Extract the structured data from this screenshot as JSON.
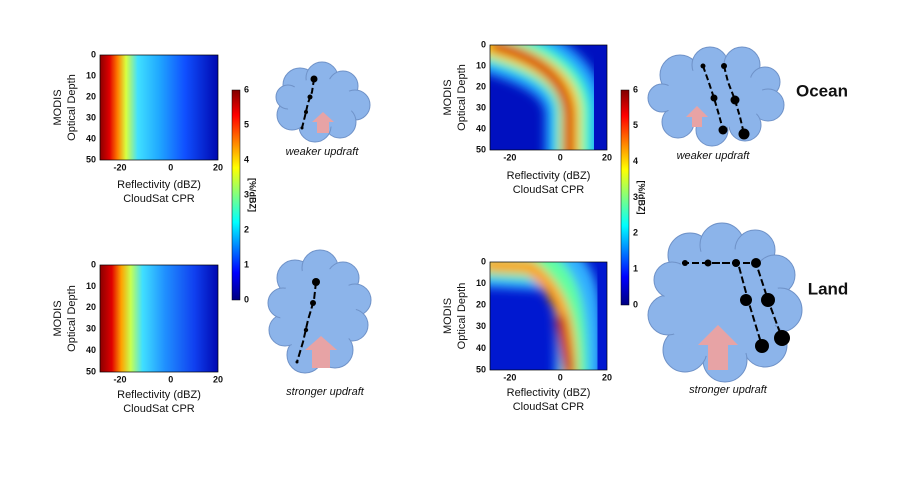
{
  "panels": [
    {
      "y_label": [
        "MODIS",
        "Optical Depth"
      ],
      "yticks": [
        "0",
        "10",
        "20",
        "30",
        "40",
        "50"
      ],
      "xticks": [
        "-20",
        "0",
        "20"
      ],
      "x_label": "Reflectivity (dBZ)",
      "x_sublabel": "CloudSat CPR"
    },
    {
      "y_label": [
        "MODIS",
        "Optical Depth"
      ],
      "yticks": [
        "0",
        "10",
        "20",
        "30",
        "40",
        "50"
      ],
      "xticks": [
        "-20",
        "0",
        "20"
      ],
      "x_label": "Reflectivity (dBZ)",
      "x_sublabel": "CloudSat CPR"
    },
    {
      "y_label": [
        "MODIS",
        "Optical Depth"
      ],
      "yticks": [
        "0",
        "10",
        "20",
        "30",
        "40",
        "50"
      ],
      "xticks": [
        "-20",
        "0",
        "20"
      ],
      "x_label": "Reflectivity (dBZ)",
      "x_sublabel": "CloudSat CPR"
    },
    {
      "y_label": [
        "MODIS",
        "Optical Depth"
      ],
      "yticks": [
        "0",
        "10",
        "20",
        "30",
        "40",
        "50"
      ],
      "xticks": [
        "-20",
        "0",
        "20"
      ],
      "x_label": "Reflectivity (dBZ)",
      "x_sublabel": "CloudSat CPR"
    }
  ],
  "colorbars": [
    {
      "label": "[%/dBZ]",
      "ticks": [
        "0",
        "1",
        "2",
        "3",
        "4",
        "5",
        "6"
      ]
    },
    {
      "label": "[%/dBZ]",
      "ticks": [
        "0",
        "1",
        "2",
        "3",
        "4",
        "5",
        "6"
      ]
    }
  ],
  "clouds": [
    {
      "caption": "weaker updraft"
    },
    {
      "caption": "stronger updraft"
    },
    {
      "caption": "weaker updraft"
    },
    {
      "caption": "stronger updraft"
    }
  ],
  "regions": [
    "Ocean",
    "Land"
  ]
}
